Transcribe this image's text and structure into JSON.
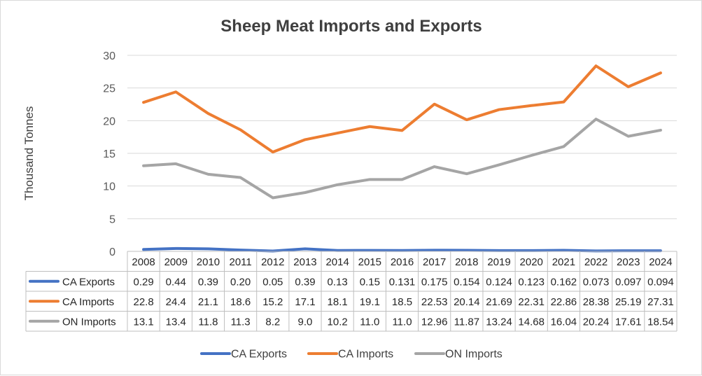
{
  "chart_data": {
    "type": "line",
    "title": "Sheep Meat Imports and Exports",
    "ylabel": "Thousand Tonnes",
    "xlabel": "",
    "ylim": [
      0,
      30
    ],
    "yticks": [
      0,
      5,
      10,
      15,
      20,
      25,
      30
    ],
    "grid": true,
    "legend_position": "bottom",
    "data_table": true,
    "categories": [
      "2008",
      "2009",
      "2010",
      "2011",
      "2012",
      "2013",
      "2014",
      "2015",
      "2016",
      "2017",
      "2018",
      "2019",
      "2020",
      "2021",
      "2022",
      "2023",
      "2024"
    ],
    "series": [
      {
        "name": "CA Exports",
        "color": "#4472c4",
        "values": [
          0.29,
          0.44,
          0.39,
          0.2,
          0.05,
          0.39,
          0.13,
          0.15,
          0.131,
          0.175,
          0.154,
          0.124,
          0.123,
          0.162,
          0.073,
          0.097,
          0.094
        ],
        "labels": [
          "0.29",
          "0.44",
          "0.39",
          "0.20",
          "0.05",
          "0.39",
          "0.13",
          "0.15",
          "0.131",
          "0.175",
          "0.154",
          "0.124",
          "0.123",
          "0.162",
          "0.073",
          "0.097",
          "0.094"
        ]
      },
      {
        "name": "CA Imports",
        "color": "#ed7d31",
        "values": [
          22.8,
          24.4,
          21.1,
          18.6,
          15.2,
          17.1,
          18.1,
          19.1,
          18.5,
          22.53,
          20.14,
          21.69,
          22.31,
          22.86,
          28.38,
          25.19,
          27.31
        ],
        "labels": [
          "22.8",
          "24.4",
          "21.1",
          "18.6",
          "15.2",
          "17.1",
          "18.1",
          "19.1",
          "18.5",
          "22.53",
          "20.14",
          "21.69",
          "22.31",
          "22.86",
          "28.38",
          "25.19",
          "27.31"
        ]
      },
      {
        "name": "ON Imports",
        "color": "#a5a5a5",
        "values": [
          13.1,
          13.4,
          11.8,
          11.3,
          8.2,
          9.0,
          10.2,
          11.0,
          11.0,
          12.96,
          11.87,
          13.24,
          14.68,
          16.04,
          20.24,
          17.61,
          18.54
        ],
        "labels": [
          "13.1",
          "13.4",
          "11.8",
          "11.3",
          "8.2",
          "9.0",
          "10.2",
          "11.0",
          "11.0",
          "12.96",
          "11.87",
          "13.24",
          "14.68",
          "16.04",
          "20.24",
          "17.61",
          "18.54"
        ]
      }
    ]
  }
}
